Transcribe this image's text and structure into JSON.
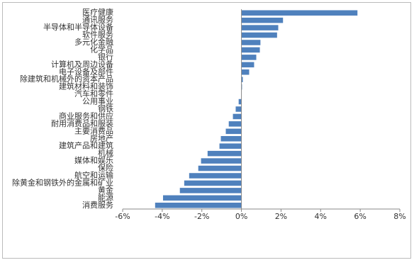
{
  "chart_data": {
    "type": "hbar",
    "categories": [
      "医疗健康",
      "通讯服务",
      "半导体和半导体设备",
      "软件服务",
      "多元化金融",
      "化学品",
      "银行",
      "计算机及周边设备",
      "电子设备及部件",
      "除建筑和机械外的资本产品",
      "建筑材料和装饰",
      "汽车和零件",
      "公用事业",
      "钢铁",
      "商业服务和供应",
      "耐用消费品和服装",
      "主要消费品",
      "房地产",
      "建筑产品和建筑",
      "机械",
      "媒体和娱乐",
      "保险",
      "航空和运输",
      "除黄金和钢铁外的金属和矿业",
      "黄金",
      "能源",
      "消费服务"
    ],
    "values": [
      5.86,
      2.1,
      1.86,
      1.8,
      0.96,
      0.93,
      0.75,
      0.64,
      0.39,
      0.07,
      0.03,
      0.01,
      -0.14,
      -0.29,
      -0.43,
      -0.64,
      -0.79,
      -1.04,
      -1.11,
      -1.71,
      -2.04,
      -2.18,
      -2.64,
      -2.89,
      -3.11,
      -3.96,
      -4.36
    ],
    "color": "#4f81bd",
    "xlim": [
      -6,
      8
    ],
    "xticks": [
      {
        "value": -6,
        "label": "-6%"
      },
      {
        "value": -4,
        "label": "-4%"
      },
      {
        "value": -2,
        "label": "-2%"
      },
      {
        "value": 0,
        "label": "0%"
      },
      {
        "value": 2,
        "label": "2%"
      },
      {
        "value": 4,
        "label": "4%"
      },
      {
        "value": 6,
        "label": "6%"
      },
      {
        "value": 8,
        "label": "8%"
      }
    ],
    "grid": false
  }
}
